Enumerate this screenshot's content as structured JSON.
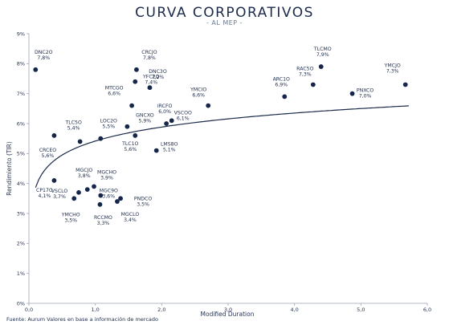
{
  "chart_data": {
    "type": "scatter",
    "title": "CURVA CORPORATIVOS",
    "subtitle": "- AL MEP -",
    "xlabel": "Modified Duration",
    "ylabel": "Rendimiento (TIR)",
    "xlim": [
      0,
      6
    ],
    "ylim": [
      0,
      9
    ],
    "x_ticks": [
      "0,0",
      "1,0",
      "2,0",
      "3,0",
      "4,0",
      "5,0",
      "6,0"
    ],
    "y_ticks": [
      "0%",
      "1%",
      "2%",
      "3%",
      "4%",
      "5%",
      "6%",
      "7%",
      "8%",
      "9%"
    ],
    "grid": false,
    "trendline": "logarithmic",
    "points": [
      {
        "label": "DNC2O",
        "value": "7,8%",
        "x": 0.1,
        "y": 7.8
      },
      {
        "label": "CRCJO",
        "value": "7,8%",
        "x": 1.62,
        "y": 7.8
      },
      {
        "label": "DNC3O",
        "value": "7,2%",
        "x": 1.82,
        "y": 7.2
      },
      {
        "label": "YFC2O",
        "value": "7,4%",
        "x": 1.6,
        "y": 7.4
      },
      {
        "label": "MTCGO",
        "value": "6,6%",
        "x": 1.55,
        "y": 6.6
      },
      {
        "label": "TLC5O",
        "value": "5,4%",
        "x": 0.77,
        "y": 5.4
      },
      {
        "label": "LOC2O",
        "value": "5,5%",
        "x": 1.08,
        "y": 5.5
      },
      {
        "label": "GNCXO",
        "value": "5,9%",
        "x": 1.48,
        "y": 5.9
      },
      {
        "label": "CRCEO",
        "value": "5,6%",
        "x": 0.38,
        "y": 5.6
      },
      {
        "label": "TLC1O",
        "value": "5,6%",
        "x": 1.6,
        "y": 5.6
      },
      {
        "label": "IRCFO",
        "value": "6,0%",
        "x": 2.07,
        "y": 6.0
      },
      {
        "label": "VSCOO",
        "value": "6,1%",
        "x": 2.15,
        "y": 6.1
      },
      {
        "label": "YMCIO",
        "value": "6,6%",
        "x": 2.7,
        "y": 6.6
      },
      {
        "label": "LMS8O",
        "value": "5,1%",
        "x": 1.92,
        "y": 5.1
      },
      {
        "label": "ARC1O",
        "value": "6,9%",
        "x": 3.85,
        "y": 6.9
      },
      {
        "label": "RAC5O",
        "value": "7,3%",
        "x": 4.28,
        "y": 7.3
      },
      {
        "label": "TLCMO",
        "value": "7,9%",
        "x": 4.4,
        "y": 7.9
      },
      {
        "label": "PNXCO",
        "value": "7,0%",
        "x": 4.87,
        "y": 7.0
      },
      {
        "label": "YMCJO",
        "value": "7,3%",
        "x": 5.67,
        "y": 7.3
      },
      {
        "label": "CP17O",
        "value": "4,1%",
        "x": 0.38,
        "y": 4.1
      },
      {
        "label": "VSCLO",
        "value": "3,7%",
        "x": 0.75,
        "y": 3.7
      },
      {
        "label": "MGCJO",
        "value": "3,8%",
        "x": 0.88,
        "y": 3.8
      },
      {
        "label": "MGCHO",
        "value": "3,9%",
        "x": 0.98,
        "y": 3.9
      },
      {
        "label": "YMCHO",
        "value": "3,5%",
        "x": 0.68,
        "y": 3.5
      },
      {
        "label": "MGC9O",
        "value": "3,6%",
        "x": 1.08,
        "y": 3.6
      },
      {
        "label": "RCCMO",
        "value": "3,3%",
        "x": 1.07,
        "y": 3.3
      },
      {
        "label": "PNDCO",
        "value": "3,5%",
        "x": 1.38,
        "y": 3.5
      },
      {
        "label": "MGCLO",
        "value": "3,4%",
        "x": 1.33,
        "y": 3.4
      }
    ]
  },
  "source": "Fuente: Aurum Valores en base a información de mercado"
}
